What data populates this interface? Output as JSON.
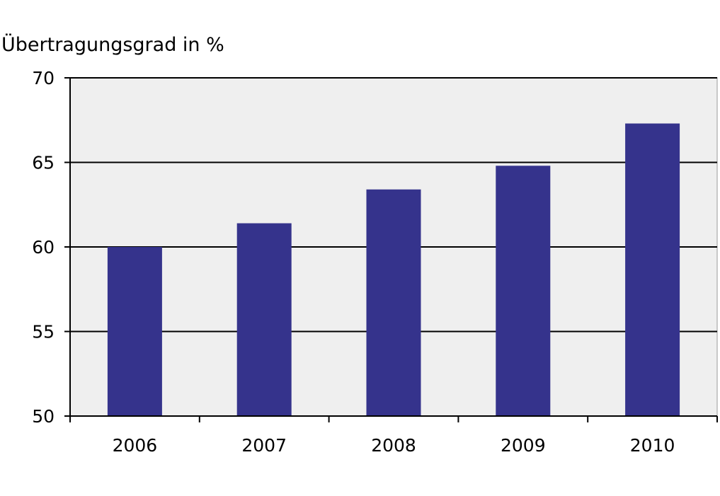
{
  "chart_data": {
    "type": "bar",
    "title": "",
    "ylabel": "Übertragungsgrad in %",
    "xlabel": "",
    "categories": [
      "2006",
      "2007",
      "2008",
      "2009",
      "2010"
    ],
    "values": [
      60.0,
      61.4,
      63.4,
      64.8,
      67.3
    ],
    "ylim": [
      50,
      70
    ],
    "yticks": [
      50,
      55,
      60,
      65,
      70
    ],
    "grid": true,
    "legend": "none",
    "colors": {
      "bar": "#35338c",
      "plot_background": "#efefef",
      "gridline": "#000000",
      "axis": "#000000",
      "plot_border": "#9a9a9a"
    }
  }
}
